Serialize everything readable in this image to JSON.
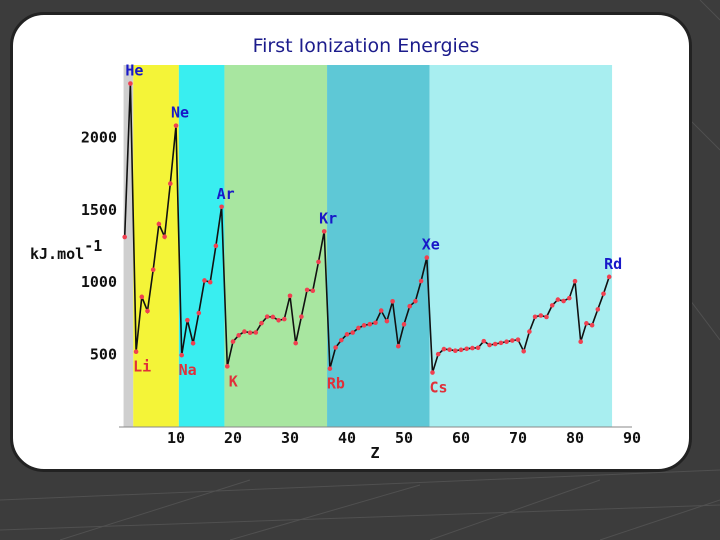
{
  "chart_data": {
    "type": "line",
    "title": "First Ionization Energies",
    "xlabel": "Z",
    "ylabel": "kJ.mol",
    "ylabel_sup": "-1",
    "xlim": [
      0,
      90
    ],
    "ylim": [
      0,
      2500
    ],
    "x_ticks": [
      10,
      20,
      30,
      40,
      50,
      60,
      70,
      80,
      90
    ],
    "y_ticks": [
      500,
      1000,
      1500,
      2000
    ],
    "regions": [
      {
        "from": 0.8,
        "to": 2.5,
        "color": "#cfcfcf"
      },
      {
        "from": 2.5,
        "to": 10.5,
        "color": "#f4f438"
      },
      {
        "from": 10.5,
        "to": 18.5,
        "color": "#39eef0"
      },
      {
        "from": 18.5,
        "to": 36.5,
        "color": "#a8e6a0"
      },
      {
        "from": 36.5,
        "to": 54.5,
        "color": "#5ec8d6"
      },
      {
        "from": 54.5,
        "to": 86.5,
        "color": "#a8eef0"
      }
    ],
    "line_color": "#111111",
    "point_color": "#f04050",
    "series": [
      {
        "x": [
          1,
          2,
          3,
          4,
          5,
          6,
          7,
          8,
          9,
          10,
          11,
          12,
          13,
          14,
          15,
          16,
          17,
          18,
          19,
          20,
          21,
          22,
          23,
          24,
          25,
          26,
          27,
          28,
          29,
          30,
          31,
          32,
          33,
          34,
          35,
          36,
          37,
          38,
          39,
          40,
          41,
          42,
          43,
          44,
          45,
          46,
          47,
          48,
          49,
          50,
          51,
          52,
          53,
          54,
          55,
          56,
          57,
          58,
          59,
          60,
          61,
          62,
          63,
          64,
          65,
          66,
          67,
          68,
          69,
          70,
          71,
          72,
          73,
          74,
          75,
          76,
          77,
          78,
          79,
          80,
          81,
          82,
          83,
          84,
          85,
          86
        ],
        "y": [
          1312,
          2372,
          520,
          899,
          801,
          1086,
          1402,
          1314,
          1681,
          2081,
          496,
          738,
          578,
          787,
          1012,
          1000,
          1251,
          1521,
          419,
          590,
          633,
          659,
          651,
          653,
          717,
          762,
          760,
          737,
          745,
          906,
          579,
          762,
          947,
          941,
          1140,
          1351,
          403,
          549,
          600,
          640,
          652,
          684,
          702,
          710,
          720,
          804,
          731,
          868,
          558,
          709,
          834,
          869,
          1008,
          1170,
          376,
          503,
          538,
          534,
          527,
          533,
          540,
          545,
          547,
          593,
          566,
          573,
          581,
          589,
          597,
          603,
          523,
          659,
          761,
          770,
          760,
          840,
          880,
          870,
          890,
          1007,
          589,
          716,
          703,
          812,
          920,
          1037
        ]
      }
    ],
    "labels": [
      {
        "text": "He",
        "x": 2,
        "group": "gas"
      },
      {
        "text": "Ne",
        "x": 10,
        "group": "gas"
      },
      {
        "text": "Ar",
        "x": 18,
        "group": "gas"
      },
      {
        "text": "Kr",
        "x": 36,
        "group": "gas"
      },
      {
        "text": "Xe",
        "x": 54,
        "group": "gas"
      },
      {
        "text": "Rd",
        "x": 86,
        "group": "gas"
      },
      {
        "text": "Li",
        "x": 3,
        "group": "alk"
      },
      {
        "text": "Na",
        "x": 11,
        "group": "alk"
      },
      {
        "text": "K",
        "x": 19,
        "group": "alk"
      },
      {
        "text": "Rb",
        "x": 37,
        "group": "alk"
      },
      {
        "text": "Cs",
        "x": 55,
        "group": "alk"
      }
    ]
  }
}
